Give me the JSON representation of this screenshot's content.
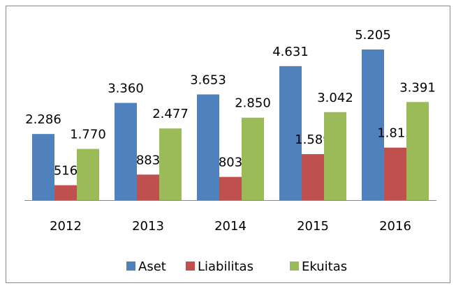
{
  "chart_data": {
    "type": "bar",
    "categories": [
      "2012",
      "2013",
      "2014",
      "2015",
      "2016"
    ],
    "series": [
      {
        "name": "Aset",
        "color": "#4f81bd",
        "values": [
          2286,
          3360,
          3653,
          4631,
          5205
        ],
        "value_labels": [
          "2.286",
          "3.360",
          "3.653",
          "4.631",
          "5.205"
        ]
      },
      {
        "name": "Liabilitas",
        "color": "#c0504d",
        "values": [
          516,
          883,
          803,
          1589,
          1815
        ],
        "value_labels": [
          "516",
          "883",
          "803",
          "1.589",
          "1.815"
        ]
      },
      {
        "name": "Ekuitas",
        "color": "#9bbb59",
        "values": [
          1770,
          2477,
          2850,
          3042,
          3391
        ],
        "value_labels": [
          "1.770",
          "2.477",
          "2.850",
          "3.042",
          "3.391"
        ]
      }
    ]
  }
}
